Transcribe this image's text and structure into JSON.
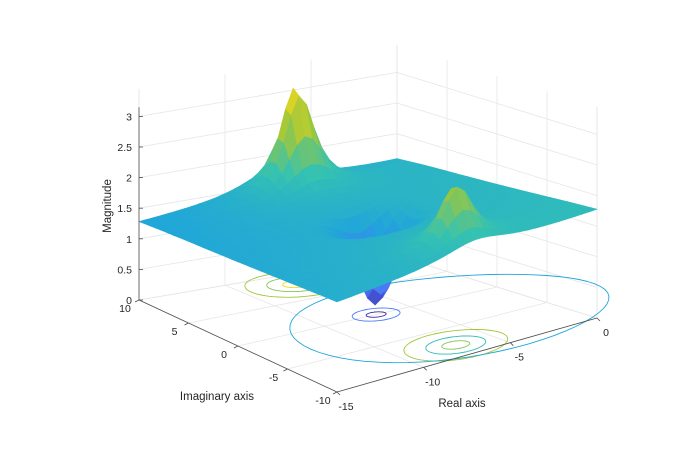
{
  "chart_data": {
    "type": "surface",
    "xlabel": "Real axis",
    "ylabel": "Imaginary axis",
    "zlabel": "Magnitude",
    "xlim": [
      -15,
      0
    ],
    "ylim": [
      -10,
      10
    ],
    "zlim": [
      0,
      3
    ],
    "x_ticks": [
      -15,
      -10,
      -5,
      0
    ],
    "y_ticks": [
      -10,
      -5,
      0,
      5,
      10
    ],
    "z_ticks": [
      0,
      0.5,
      1,
      1.5,
      2,
      2.5,
      3
    ],
    "x_tick_labels": [
      "-15",
      "-10",
      "-5",
      "0"
    ],
    "y_tick_labels": [
      "-10",
      "-5",
      "0",
      "5",
      "10"
    ],
    "z_tick_labels": [
      "0",
      "0.5",
      "1",
      "1.5",
      "2",
      "2.5",
      "3"
    ],
    "poles": [
      {
        "re": -7,
        "im": 8,
        "magnitude": 3.2
      },
      {
        "re": -7,
        "im": -8,
        "magnitude": 2.4
      }
    ],
    "zeros": [
      {
        "re": -7,
        "im": 0,
        "magnitude": 0
      }
    ],
    "surface_level": 1.35,
    "grid": true,
    "colormap": [
      "#3e26a8",
      "#4a7bf7",
      "#20a5da",
      "#35c2b1",
      "#a0c73a",
      "#f5d91f"
    ]
  }
}
